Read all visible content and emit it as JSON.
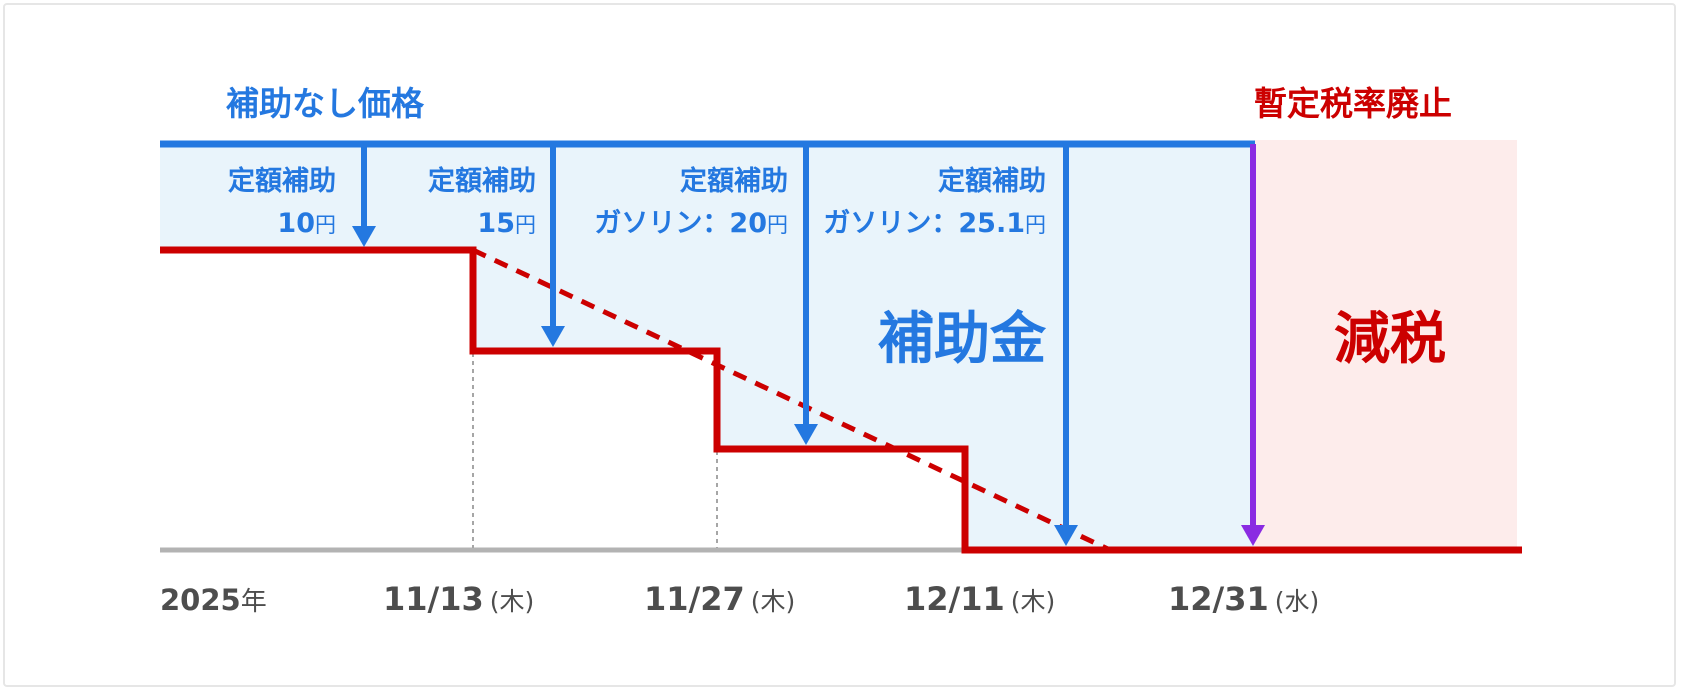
{
  "labels": {
    "no_subsidy_price": "補助なし価格",
    "tax_abolition": "暫定税率廃止",
    "subsidy_area": "補助金",
    "tax_cut_area": "減税"
  },
  "steps": [
    {
      "line1": "定額補助",
      "line2": "10",
      "unit": "円"
    },
    {
      "line1": "定額補助",
      "line2": "15",
      "unit": "円"
    },
    {
      "line1": "定額補助",
      "line2": "ガソリン：20",
      "unit": "円"
    },
    {
      "line1": "定額補助",
      "line2": "ガソリン：25.1",
      "unit": "円"
    }
  ],
  "dates": [
    {
      "main": "2025",
      "suffix": "年"
    },
    {
      "main": "11/13",
      "suffix": "(木)"
    },
    {
      "main": "11/27",
      "suffix": "(木)"
    },
    {
      "main": "12/11",
      "suffix": "(木)"
    },
    {
      "main": "12/31",
      "suffix": "(水)"
    }
  ],
  "colors": {
    "blue": "#2478e0",
    "light_blue_fill": "#e9f4fb",
    "red": "#cc0000",
    "pink_fill": "#fdeceb",
    "purple": "#8a2be2",
    "gray_axis": "#b3b3b3",
    "dotted": "#a6a6a6",
    "text_dark": "#4d4d4d"
  }
}
